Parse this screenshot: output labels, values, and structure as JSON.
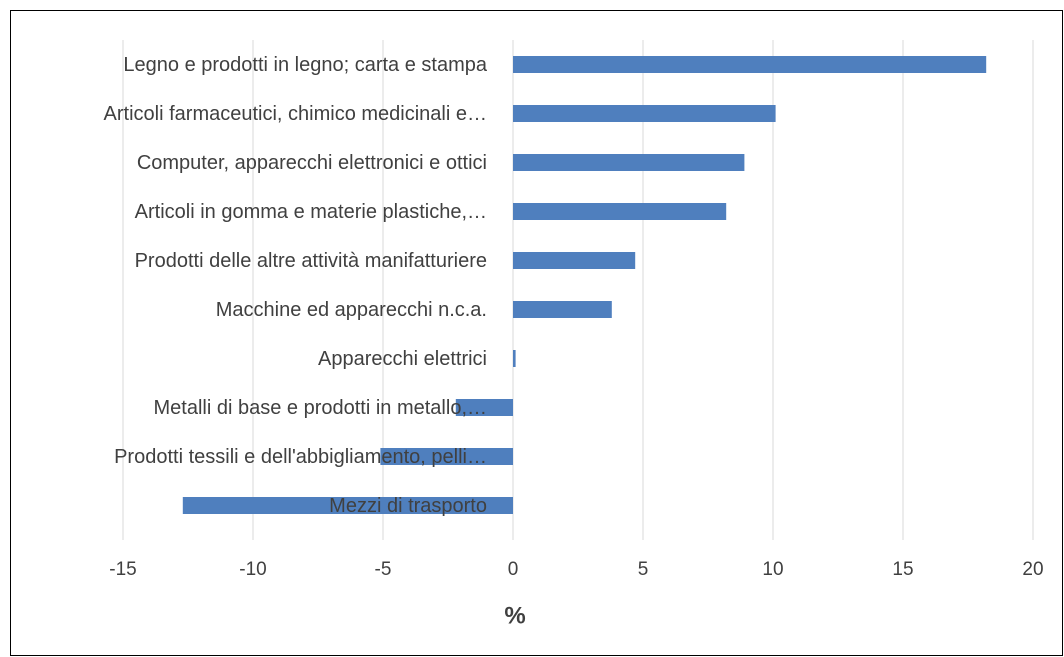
{
  "chart_data": {
    "type": "bar",
    "categories": [
      "Legno e prodotti in legno; carta e stampa",
      "Articoli farmaceutici, chimico medicinali e…",
      "Computer, apparecchi elettronici e ottici",
      "Articoli in gomma e materie plastiche,…",
      "Prodotti delle altre attività manifatturiere",
      "Macchine ed apparecchi n.c.a.",
      "Apparecchi elettrici",
      "Metalli di base e prodotti in metallo,…",
      "Prodotti tessili e dell'abbigliamento, pelli…",
      "Mezzi di trasporto"
    ],
    "values": [
      18.2,
      10.1,
      8.9,
      8.2,
      4.7,
      3.8,
      0.1,
      -2.2,
      -5.1,
      -12.7
    ],
    "color": "#4f7fbe",
    "x_label": "%",
    "xlim": [
      -15,
      20
    ],
    "xticks": [
      -15,
      -10,
      -5,
      0,
      5,
      10,
      15,
      20
    ],
    "grid": true
  }
}
